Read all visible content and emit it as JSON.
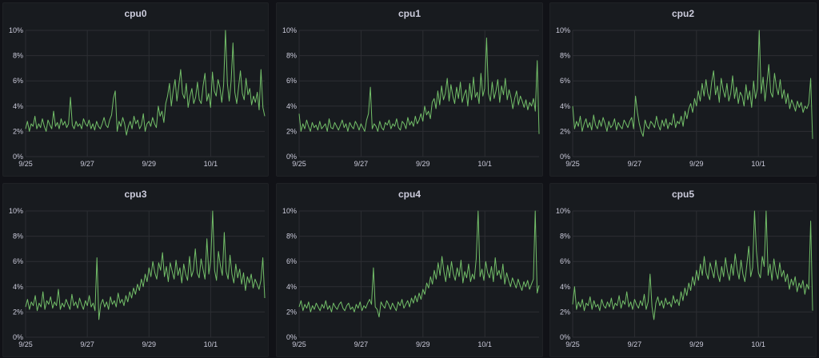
{
  "colors": {
    "series": "#73bf69",
    "grid": "#2c2e33"
  },
  "panels": [
    {
      "title": "cpu0",
      "chart_data": {
        "type": "line",
        "series": [
          {
            "values": [
              2.2,
              2.8,
              2.0,
              2.6,
              2.4,
              3.2,
              2.2,
              2.6,
              2.3,
              3.0,
              2.4,
              2.0,
              2.9,
              2.5,
              2.2,
              3.6,
              2.4,
              2.7,
              2.2,
              3.0,
              2.5,
              2.8,
              2.3,
              2.6,
              4.7,
              2.5,
              2.2,
              2.8,
              2.4,
              2.6,
              2.2,
              3.0,
              2.6,
              2.4,
              2.9,
              2.2,
              2.6,
              2.1,
              2.8,
              2.4,
              2.2,
              2.6,
              3.1,
              2.5,
              2.3,
              2.9,
              3.3,
              4.6,
              5.2,
              2.0,
              2.8,
              2.4,
              3.1,
              2.6,
              1.7,
              2.4,
              2.8,
              2.2,
              3.2,
              2.6,
              2.9,
              2.2,
              2.5,
              3.4,
              2.0,
              2.6,
              2.8,
              2.4,
              3.1,
              2.6,
              2.3,
              4.0,
              3.2,
              3.6,
              2.7,
              4.2,
              4.8,
              5.8,
              4.0,
              5.2,
              6.1,
              4.4,
              5.6,
              6.9,
              5.0,
              4.6,
              5.8,
              3.9,
              4.8,
              5.4,
              4.2,
              4.7,
              5.9,
              4.5,
              4.2,
              5.6,
              6.6,
              4.4,
              5.0,
              3.9,
              6.7,
              5.2,
              4.8,
              6.1,
              5.5,
              4.3,
              5.7,
              10.0,
              5.8,
              4.4,
              6.0,
              9.0,
              5.1,
              4.2,
              5.5,
              6.8,
              5.0,
              4.5,
              6.2,
              4.9,
              5.4,
              4.1,
              4.8,
              4.3,
              5.1,
              3.7,
              6.9,
              3.9,
              3.2
            ]
          }
        ],
        "xlabels": [
          "9/25",
          "9/27",
          "9/29",
          "10/1"
        ],
        "yticks": [
          "0%",
          "2%",
          "4%",
          "6%",
          "8%",
          "10%"
        ],
        "ylim": [
          0,
          10
        ]
      }
    },
    {
      "title": "cpu1",
      "chart_data": {
        "type": "line",
        "series": [
          {
            "values": [
              3.4,
              2.0,
              2.6,
              2.2,
              2.9,
              2.4,
              2.0,
              2.7,
              2.3,
              2.5,
              2.1,
              2.8,
              2.2,
              2.4,
              2.6,
              2.0,
              3.0,
              2.3,
              2.2,
              2.7,
              2.4,
              2.1,
              2.5,
              2.9,
              2.3,
              2.6,
              2.0,
              2.7,
              2.4,
              2.2,
              2.8,
              2.5,
              2.1,
              2.6,
              2.3,
              2.0,
              2.9,
              3.4,
              5.5,
              2.2,
              2.6,
              2.4,
              2.0,
              2.8,
              2.3,
              2.1,
              2.7,
              2.5,
              2.9,
              2.2,
              2.6,
              2.4,
              3.0,
              2.3,
              2.1,
              2.8,
              2.6,
              2.2,
              3.1,
              2.5,
              2.8,
              2.4,
              3.2,
              2.6,
              2.9,
              3.4,
              2.8,
              4.0,
              3.3,
              3.6,
              3.0,
              4.3,
              4.6,
              3.8,
              5.2,
              4.1,
              5.6,
              4.5,
              5.0,
              6.2,
              4.4,
              5.7,
              4.8,
              4.2,
              5.5,
              4.6,
              5.9,
              4.3,
              4.9,
              5.3,
              4.0,
              5.8,
              4.5,
              6.3,
              4.7,
              5.1,
              4.2,
              6.6,
              4.8,
              5.4,
              9.4,
              5.0,
              4.4,
              5.9,
              4.6,
              5.2,
              6.1,
              4.3,
              5.6,
              4.9,
              6.2,
              4.5,
              5.3,
              4.7,
              3.8,
              4.6,
              5.2,
              4.1,
              4.8,
              4.4,
              3.9,
              4.5,
              3.7,
              4.3,
              4.0,
              4.6,
              3.6,
              7.6,
              1.8
            ]
          }
        ],
        "xlabels": [
          "9/25",
          "9/27",
          "9/29",
          "10/1"
        ],
        "yticks": [
          "0%",
          "2%",
          "4%",
          "6%",
          "8%",
          "10%"
        ],
        "ylim": [
          0,
          10
        ]
      }
    },
    {
      "title": "cpu2",
      "chart_data": {
        "type": "line",
        "series": [
          {
            "values": [
              4.0,
              2.2,
              2.8,
              2.4,
              3.2,
              2.0,
              2.6,
              3.0,
              2.3,
              2.7,
              2.1,
              3.3,
              2.5,
              2.2,
              2.9,
              2.4,
              3.1,
              2.6,
              2.0,
              2.8,
              2.3,
              2.5,
              3.0,
              2.1,
              2.7,
              2.4,
              2.2,
              2.9,
              2.6,
              2.3,
              2.8,
              3.1,
              2.2,
              4.8,
              3.5,
              2.6,
              2.0,
              1.6,
              2.9,
              2.4,
              2.2,
              2.8,
              2.6,
              2.3,
              3.2,
              2.5,
              2.1,
              2.9,
              2.4,
              3.0,
              2.2,
              2.7,
              2.5,
              3.4,
              2.3,
              2.8,
              2.6,
              3.2,
              2.4,
              3.6,
              3.0,
              3.8,
              4.2,
              3.5,
              4.6,
              4.0,
              5.2,
              4.4,
              5.8,
              4.8,
              6.1,
              5.0,
              4.5,
              5.9,
              6.8,
              4.9,
              5.6,
              4.3,
              6.2,
              5.3,
              4.7,
              5.8,
              4.4,
              5.0,
              6.4,
              4.6,
              5.5,
              4.2,
              5.1,
              4.8,
              4.0,
              5.7,
              4.5,
              5.2,
              3.9,
              6.0,
              4.6,
              5.4,
              10.0,
              5.0,
              6.3,
              4.4,
              5.8,
              7.3,
              5.1,
              4.7,
              6.6,
              5.5,
              4.9,
              6.1,
              4.6,
              5.3,
              4.2,
              5.0,
              3.8,
              4.5,
              4.1,
              3.6,
              4.4,
              3.9,
              4.3,
              3.5,
              4.0,
              3.8,
              4.2,
              6.2,
              1.4
            ]
          }
        ],
        "xlabels": [
          "9/25",
          "9/27",
          "9/29",
          "10/1"
        ],
        "yticks": [
          "0%",
          "2%",
          "4%",
          "6%",
          "8%",
          "10%"
        ],
        "ylim": [
          0,
          10
        ]
      }
    },
    {
      "title": "cpu3",
      "chart_data": {
        "type": "line",
        "series": [
          {
            "values": [
              2.4,
              3.0,
              2.2,
              2.8,
              2.5,
              3.3,
              2.1,
              2.7,
              2.4,
              3.6,
              2.2,
              2.9,
              2.6,
              3.2,
              2.3,
              2.8,
              2.5,
              3.8,
              2.2,
              2.7,
              2.4,
              3.0,
              2.6,
              2.2,
              3.4,
              2.5,
              2.8,
              2.3,
              3.1,
              2.6,
              2.2,
              2.9,
              2.5,
              3.3,
              2.4,
              2.7,
              2.1,
              6.3,
              1.4,
              2.6,
              3.0,
              2.4,
              2.8,
              2.2,
              3.2,
              2.6,
              2.9,
              2.4,
              3.5,
              2.7,
              3.0,
              2.5,
              3.3,
              2.8,
              3.6,
              3.1,
              3.9,
              3.4,
              4.2,
              3.7,
              4.6,
              4.0,
              5.0,
              4.4,
              5.5,
              4.8,
              6.0,
              5.1,
              4.6,
              5.9,
              5.3,
              6.7,
              4.8,
              5.6,
              4.4,
              5.9,
              5.2,
              4.6,
              6.1,
              4.9,
              5.5,
              4.3,
              5.8,
              5.0,
              4.5,
              6.4,
              4.8,
              5.3,
              7.0,
              5.1,
              4.7,
              6.2,
              5.4,
              4.6,
              7.8,
              5.0,
              6.1,
              10.0,
              5.3,
              4.5,
              6.8,
              5.7,
              4.9,
              8.3,
              5.2,
              4.6,
              6.5,
              5.0,
              4.3,
              5.8,
              4.7,
              5.4,
              4.2,
              5.1,
              3.7,
              4.8,
              4.3,
              5.0,
              3.9,
              4.6,
              4.2,
              3.8,
              4.5,
              6.3,
              3.1
            ]
          }
        ],
        "xlabels": [
          "9/25",
          "9/27",
          "9/29",
          "10/1"
        ],
        "yticks": [
          "0%",
          "2%",
          "4%",
          "6%",
          "8%",
          "10%"
        ],
        "ylim": [
          0,
          10
        ]
      }
    },
    {
      "title": "cpu4",
      "chart_data": {
        "type": "line",
        "series": [
          {
            "values": [
              2.4,
              2.9,
              2.1,
              2.6,
              2.3,
              2.8,
              2.0,
              2.5,
              2.2,
              2.7,
              2.4,
              2.1,
              2.6,
              2.3,
              2.9,
              2.2,
              2.5,
              2.0,
              2.7,
              2.4,
              2.2,
              2.6,
              2.8,
              2.3,
              2.1,
              2.5,
              2.7,
              2.2,
              2.4,
              2.0,
              2.6,
              2.3,
              2.8,
              2.1,
              2.5,
              2.3,
              2.7,
              3.0,
              2.6,
              5.5,
              2.4,
              2.2,
              1.6,
              2.8,
              2.5,
              2.3,
              2.9,
              2.6,
              2.2,
              2.7,
              2.4,
              2.1,
              2.8,
              2.5,
              3.0,
              2.3,
              2.6,
              2.9,
              2.4,
              3.1,
              2.7,
              3.3,
              2.8,
              3.5,
              3.0,
              3.8,
              3.4,
              4.3,
              3.9,
              4.8,
              4.2,
              5.3,
              4.6,
              5.9,
              4.9,
              6.4,
              5.2,
              4.4,
              5.7,
              4.7,
              6.0,
              5.0,
              4.5,
              5.5,
              4.8,
              6.1,
              4.3,
              5.2,
              4.7,
              5.8,
              4.4,
              5.0,
              4.6,
              6.2,
              10.0,
              4.8,
              5.4,
              4.5,
              6.0,
              5.1,
              4.7,
              5.6,
              4.4,
              6.3,
              4.9,
              5.3,
              4.6,
              5.8,
              4.2,
              5.1,
              4.5,
              4.0,
              4.7,
              4.3,
              3.9,
              4.6,
              4.1,
              3.7,
              4.4,
              4.0,
              4.5,
              3.8,
              4.2,
              4.6,
              10.0,
              3.5,
              4.1
            ]
          }
        ],
        "xlabels": [
          "9/25",
          "9/27",
          "9/29",
          "10/1"
        ],
        "yticks": [
          "0%",
          "2%",
          "4%",
          "6%",
          "8%",
          "10%"
        ],
        "ylim": [
          0,
          10
        ]
      }
    },
    {
      "title": "cpu5",
      "chart_data": {
        "type": "line",
        "series": [
          {
            "values": [
              2.6,
              4.0,
              2.2,
              2.8,
              2.4,
              3.0,
              2.1,
              2.7,
              2.5,
              3.2,
              2.2,
              2.9,
              2.4,
              2.6,
              2.1,
              3.0,
              2.5,
              2.3,
              2.8,
              2.4,
              3.1,
              2.2,
              2.7,
              2.5,
              3.3,
              2.3,
              2.9,
              2.6,
              3.6,
              2.4,
              2.8,
              2.2,
              3.0,
              2.6,
              2.3,
              2.9,
              2.5,
              3.4,
              2.2,
              2.8,
              5.0,
              2.4,
              1.4,
              2.7,
              3.2,
              2.5,
              2.9,
              2.3,
              3.1,
              2.6,
              2.8,
              2.4,
              3.3,
              2.7,
              3.0,
              2.5,
              3.6,
              2.9,
              3.9,
              3.3,
              4.3,
              3.7,
              4.8,
              4.1,
              5.3,
              4.5,
              5.8,
              4.9,
              6.4,
              5.1,
              4.6,
              5.9,
              5.3,
              4.7,
              6.1,
              5.0,
              4.4,
              5.6,
              4.8,
              6.3,
              5.2,
              4.5,
              5.8,
              4.9,
              6.6,
              5.4,
              4.6,
              6.1,
              5.0,
              4.4,
              5.7,
              7.2,
              4.8,
              5.5,
              10.0,
              6.8,
              5.1,
              4.7,
              6.4,
              5.6,
              10.0,
              4.9,
              5.8,
              4.5,
              6.2,
              5.2,
              4.6,
              5.9,
              4.8,
              5.3,
              4.4,
              5.0,
              3.8,
              4.6,
              4.1,
              4.8,
              3.6,
              4.3,
              3.9,
              4.5,
              3.4,
              4.2,
              3.8,
              9.2,
              2.1
            ]
          }
        ],
        "xlabels": [
          "9/25",
          "9/27",
          "9/29",
          "10/1"
        ],
        "yticks": [
          "0%",
          "2%",
          "4%",
          "6%",
          "8%",
          "10%"
        ],
        "ylim": [
          0,
          10
        ]
      }
    }
  ]
}
